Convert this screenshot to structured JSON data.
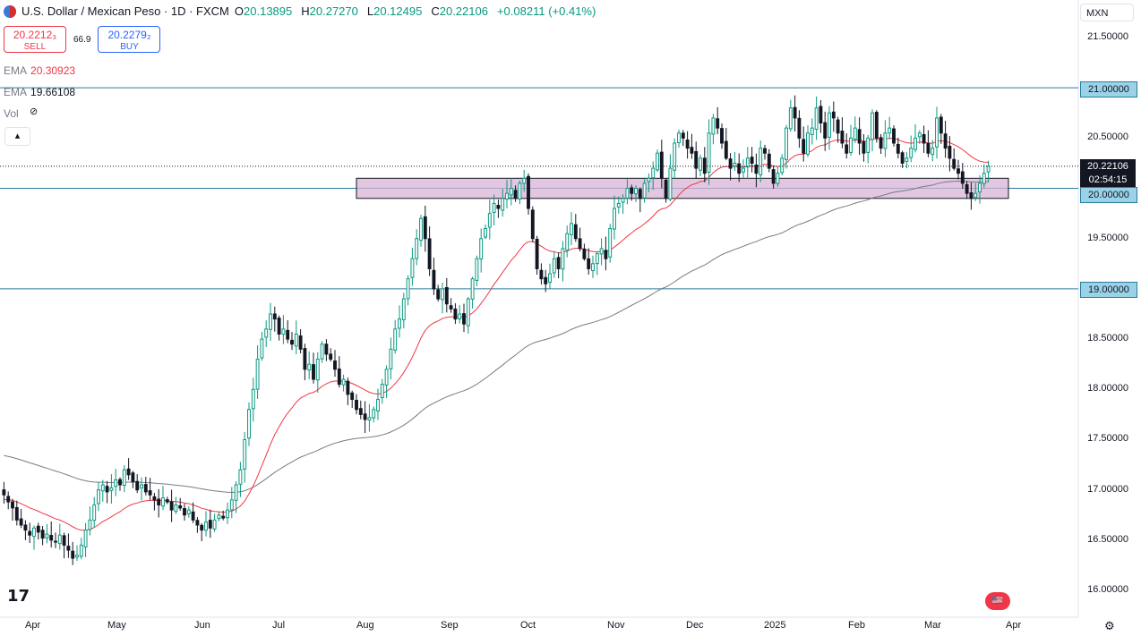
{
  "header": {
    "symbol_title": "U.S. Dollar / Mexican Peso · 1D · FXCM",
    "o_label": "O",
    "o_value": "20.13895",
    "h_label": "H",
    "h_value": "20.27270",
    "l_label": "L",
    "l_value": "20.12495",
    "c_label": "C",
    "c_value": "20.22106",
    "change": "+0.08211 (+0.41%)"
  },
  "trade": {
    "sell_price": "20.2212₃",
    "sell_label": "SELL",
    "spread": "66.9",
    "buy_price": "20.2279₂",
    "buy_label": "BUY"
  },
  "indicators": {
    "ema1_label": "EMA",
    "ema1_value": "20.30923",
    "ema2_label": "EMA",
    "ema2_value": "19.66108",
    "vol_label": "Vol"
  },
  "collapse_icon": "chevron-up-icon",
  "currency": "MXN",
  "price_tags": {
    "resistance": "21.00000",
    "support": "20.00000",
    "lower": "19.00000",
    "last_price": "20.22106",
    "countdown": "02:54:15"
  },
  "colors": {
    "up": "#089981",
    "down": "#131722",
    "ema_fast": "#f23645",
    "ema_slow": "#787b86",
    "hline": "#2a7c9b",
    "zone_fill": "#d9b3d6",
    "zone_stroke": "#131722"
  },
  "chart_data": {
    "type": "candlestick",
    "title": "U.S. Dollar / Mexican Peso · 1D · FXCM",
    "y_ticks": [
      "21.50000",
      "21.00000",
      "20.50000",
      "20.00000",
      "19.50000",
      "19.00000",
      "18.50000",
      "18.00000",
      "17.50000",
      "17.00000",
      "16.50000",
      "16.00000"
    ],
    "x_ticks": [
      "Apr",
      "May",
      "Jun",
      "Jul",
      "Aug",
      "Sep",
      "Oct",
      "Nov",
      "Dec",
      "2025",
      "Feb",
      "Mar",
      "Apr"
    ],
    "ylim": [
      15.85,
      21.7
    ],
    "horizontal_lines": [
      21.0,
      20.0,
      19.0
    ],
    "zone": [
      19.9,
      20.1
    ],
    "grid": false,
    "closes": [
      16.95,
      16.88,
      16.82,
      16.7,
      16.65,
      16.6,
      16.55,
      16.62,
      16.58,
      16.52,
      16.56,
      16.5,
      16.48,
      16.55,
      16.45,
      16.4,
      16.32,
      16.35,
      16.45,
      16.6,
      16.7,
      16.85,
      17.0,
      17.05,
      16.98,
      17.02,
      17.1,
      17.05,
      17.2,
      17.15,
      17.08,
      17.0,
      17.05,
      16.98,
      16.95,
      16.9,
      16.85,
      16.92,
      16.88,
      16.8,
      16.85,
      16.82,
      16.75,
      16.8,
      16.7,
      16.65,
      16.6,
      16.68,
      16.62,
      16.7,
      16.75,
      16.72,
      16.8,
      16.9,
      17.05,
      17.2,
      17.5,
      17.8,
      18.0,
      18.3,
      18.5,
      18.6,
      18.75,
      18.7,
      18.55,
      18.6,
      18.5,
      18.45,
      18.55,
      18.4,
      18.2,
      18.25,
      18.1,
      18.3,
      18.45,
      18.35,
      18.3,
      18.2,
      18.05,
      18.1,
      17.95,
      17.9,
      17.8,
      17.75,
      17.7,
      17.72,
      17.8,
      17.9,
      18.05,
      18.2,
      18.4,
      18.6,
      18.7,
      18.9,
      19.1,
      19.3,
      19.5,
      19.7,
      19.5,
      19.2,
      19.0,
      18.9,
      19.0,
      18.85,
      18.8,
      18.7,
      18.75,
      18.65,
      18.9,
      19.1,
      19.3,
      19.5,
      19.6,
      19.75,
      19.85,
      19.8,
      19.9,
      19.95,
      20.0,
      19.9,
      20.05,
      20.1,
      19.8,
      19.5,
      19.2,
      19.1,
      19.05,
      19.15,
      19.3,
      19.2,
      19.4,
      19.55,
      19.65,
      19.5,
      19.4,
      19.3,
      19.2,
      19.25,
      19.35,
      19.4,
      19.3,
      19.6,
      19.8,
      19.85,
      19.9,
      20.0,
      19.95,
      20.0,
      19.9,
      20.05,
      20.1,
      20.2,
      20.35,
      20.1,
      19.9,
      20.2,
      20.45,
      20.55,
      20.5,
      20.4,
      20.35,
      20.2,
      20.3,
      20.15,
      20.55,
      20.7,
      20.6,
      20.45,
      20.3,
      20.2,
      20.25,
      20.15,
      20.2,
      20.3,
      20.25,
      20.15,
      20.4,
      20.35,
      20.2,
      20.05,
      20.15,
      20.3,
      20.6,
      20.8,
      20.7,
      20.5,
      20.35,
      20.55,
      20.6,
      20.8,
      20.65,
      20.5,
      20.75,
      20.7,
      20.55,
      20.45,
      20.35,
      20.5,
      20.6,
      20.45,
      20.35,
      20.5,
      20.75,
      20.5,
      20.4,
      20.55,
      20.6,
      20.45,
      20.35,
      20.25,
      20.3,
      20.4,
      20.5,
      20.55,
      20.45,
      20.35,
      20.4,
      20.7,
      20.55,
      20.4,
      20.3,
      20.2,
      20.15,
      20.05,
      19.95,
      19.9,
      19.95,
      20.05,
      20.15,
      20.22
    ]
  }
}
